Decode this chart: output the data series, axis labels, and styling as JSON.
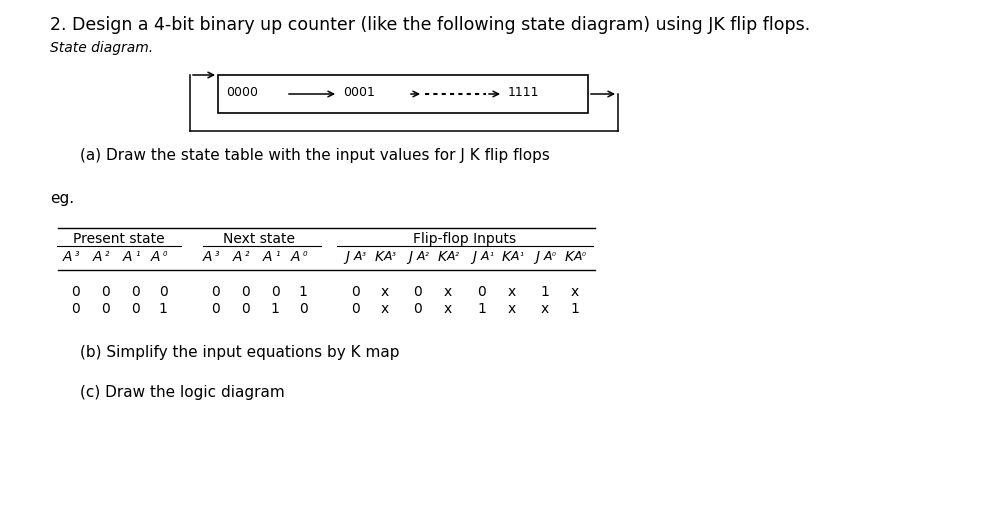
{
  "title": "2. Design a 4-bit binary up counter (like the following state diagram) using JK flip flops.",
  "state_diagram_label": "State diagram.",
  "part_a": "(a) Draw the state table with the input values for J K flip flops",
  "eg_label": "eg.",
  "part_b": "(b) Simplify the input equations by K map",
  "part_c": "(c) Draw the logic diagram",
  "table_data": [
    [
      "0",
      "0",
      "0",
      "0",
      "0",
      "0",
      "0",
      "1",
      "0",
      "x",
      "0",
      "x",
      "0",
      "x",
      "1",
      "x"
    ],
    [
      "0",
      "0",
      "0",
      "1",
      "0",
      "0",
      "1",
      "0",
      "0",
      "x",
      "0",
      "x",
      "1",
      "x",
      "x",
      "1"
    ]
  ],
  "text_color": "#000000",
  "font_size_title": 12.5,
  "font_size_body": 11,
  "font_size_table": 10,
  "font_size_small": 8
}
